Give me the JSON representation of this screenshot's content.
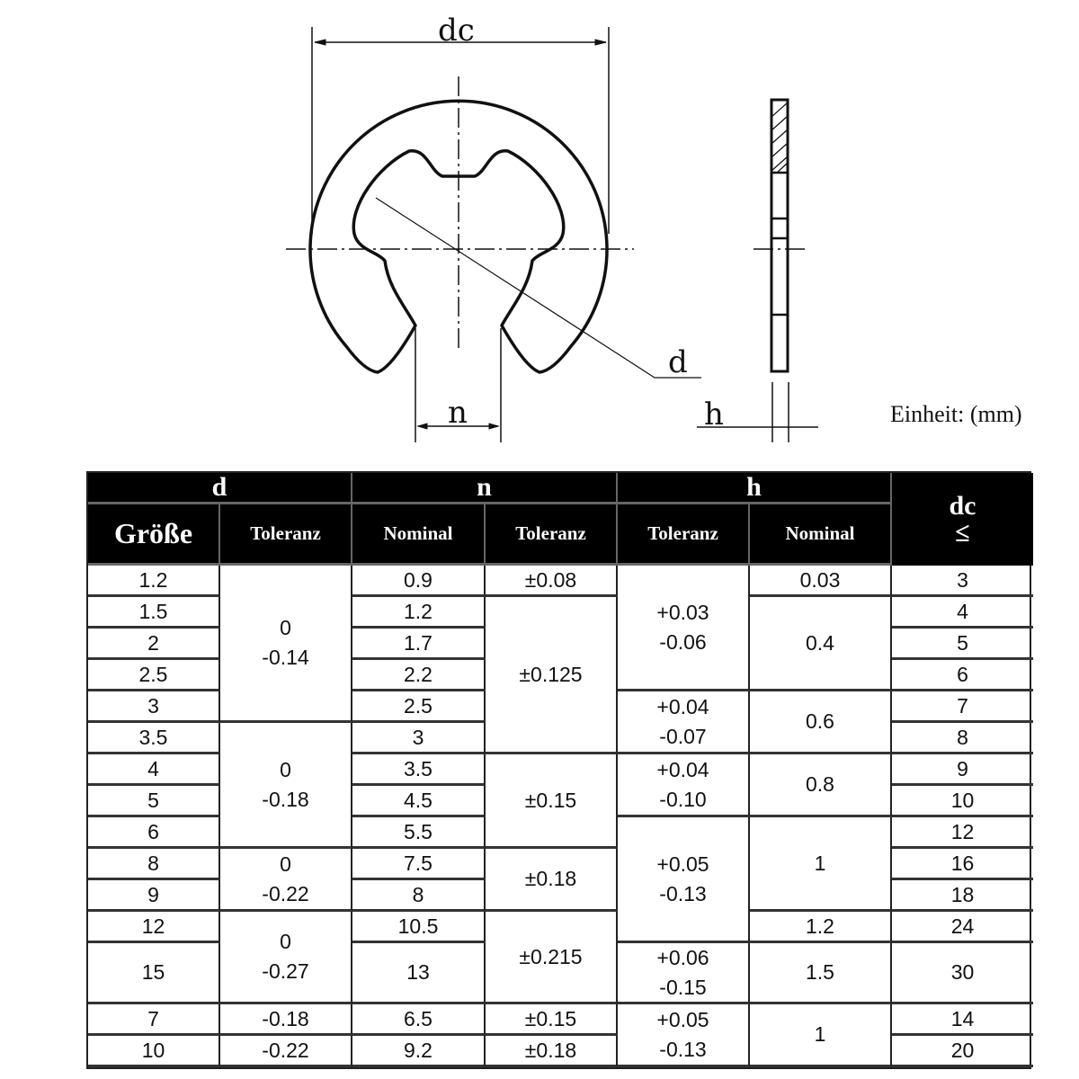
{
  "drawing": {
    "labels": {
      "dc": "dc",
      "d": "d",
      "n": "n",
      "h": "h"
    },
    "unit_label": "Einheit: (mm)"
  },
  "table": {
    "group_headers": {
      "d": "d",
      "n": "n",
      "h": "h",
      "dc": "dc",
      "dc_symbol": "≤"
    },
    "sub_headers": [
      "Größe",
      "Toleranz",
      "Nominal",
      "Toleranz",
      "Toleranz",
      "Nominal"
    ],
    "columns": [
      {
        "key": "size",
        "entries": [
          {
            "v": [
              "1.2"
            ],
            "rows": 1
          },
          {
            "v": [
              "1.5"
            ],
            "rows": 1
          },
          {
            "v": [
              "2"
            ],
            "rows": 1
          },
          {
            "v": [
              "2.5"
            ],
            "rows": 1
          },
          {
            "v": [
              "3"
            ],
            "rows": 1
          },
          {
            "v": [
              "3.5"
            ],
            "rows": 1
          },
          {
            "v": [
              "4"
            ],
            "rows": 1
          },
          {
            "v": [
              "5"
            ],
            "rows": 1
          },
          {
            "v": [
              "6"
            ],
            "rows": 1
          },
          {
            "v": [
              "8"
            ],
            "rows": 1
          },
          {
            "v": [
              "9"
            ],
            "rows": 1
          },
          {
            "v": [
              "12"
            ],
            "rows": 1
          },
          {
            "v": [
              "15"
            ],
            "rows": 1
          },
          {
            "v": [
              "7"
            ],
            "rows": 1
          },
          {
            "v": [
              "10"
            ],
            "rows": 1
          }
        ]
      },
      {
        "key": "d_tolerance",
        "entries": [
          {
            "v": [
              "0",
              "-0.14"
            ],
            "rows": 5
          },
          {
            "v": [
              "0",
              "-0.18"
            ],
            "rows": 4
          },
          {
            "v": [
              "0",
              "-0.22"
            ],
            "rows": 2
          },
          {
            "v": [
              "0",
              "-0.27"
            ],
            "rows": 2
          },
          {
            "v": [
              "-0.18"
            ],
            "rows": 1
          },
          {
            "v": [
              "-0.22"
            ],
            "rows": 1
          }
        ]
      },
      {
        "key": "n_nominal",
        "entries": [
          {
            "v": [
              "0.9"
            ],
            "rows": 1
          },
          {
            "v": [
              "1.2"
            ],
            "rows": 1
          },
          {
            "v": [
              "1.7"
            ],
            "rows": 1
          },
          {
            "v": [
              "2.2"
            ],
            "rows": 1
          },
          {
            "v": [
              "2.5"
            ],
            "rows": 1
          },
          {
            "v": [
              "3"
            ],
            "rows": 1
          },
          {
            "v": [
              "3.5"
            ],
            "rows": 1
          },
          {
            "v": [
              "4.5"
            ],
            "rows": 1
          },
          {
            "v": [
              "5.5"
            ],
            "rows": 1
          },
          {
            "v": [
              "7.5"
            ],
            "rows": 1
          },
          {
            "v": [
              "8"
            ],
            "rows": 1
          },
          {
            "v": [
              "10.5"
            ],
            "rows": 1
          },
          {
            "v": [
              "13"
            ],
            "rows": 1
          },
          {
            "v": [
              "6.5"
            ],
            "rows": 1
          },
          {
            "v": [
              "9.2"
            ],
            "rows": 1
          }
        ]
      },
      {
        "key": "n_tolerance",
        "entries": [
          {
            "v": [
              "±0.08"
            ],
            "rows": 1
          },
          {
            "v": [
              "±0.125"
            ],
            "rows": 5
          },
          {
            "v": [
              "±0.15"
            ],
            "rows": 3
          },
          {
            "v": [
              "±0.18"
            ],
            "rows": 2
          },
          {
            "v": [
              "±0.215"
            ],
            "rows": 2
          },
          {
            "v": [
              "±0.15"
            ],
            "rows": 1
          },
          {
            "v": [
              "±0.18"
            ],
            "rows": 1
          }
        ]
      },
      {
        "key": "h_tolerance",
        "entries": [
          {
            "v": [
              "+0.03",
              "-0.06"
            ],
            "rows": 4
          },
          {
            "v": [
              "+0.04",
              "-0.07"
            ],
            "rows": 2
          },
          {
            "v": [
              "+0.04",
              "-0.10"
            ],
            "rows": 2
          },
          {
            "v": [
              "+0.05",
              "-0.13"
            ],
            "rows": 4
          },
          {
            "v": [
              "+0.06",
              "-0.15"
            ],
            "rows": 1
          },
          {
            "v": [
              "+0.05",
              "-0.13"
            ],
            "rows": 2
          }
        ]
      },
      {
        "key": "h_nominal",
        "entries": [
          {
            "v": [
              "0.03"
            ],
            "rows": 1
          },
          {
            "v": [
              "0.4"
            ],
            "rows": 3
          },
          {
            "v": [
              "0.6"
            ],
            "rows": 2
          },
          {
            "v": [
              "0.8"
            ],
            "rows": 2
          },
          {
            "v": [
              "1"
            ],
            "rows": 3
          },
          {
            "v": [
              "1.2"
            ],
            "rows": 1
          },
          {
            "v": [
              "1.5"
            ],
            "rows": 1
          },
          {
            "v": [
              "1"
            ],
            "rows": 2
          }
        ]
      },
      {
        "key": "dc",
        "entries": [
          {
            "v": [
              "3"
            ],
            "rows": 1
          },
          {
            "v": [
              "4"
            ],
            "rows": 1
          },
          {
            "v": [
              "5"
            ],
            "rows": 1
          },
          {
            "v": [
              "6"
            ],
            "rows": 1
          },
          {
            "v": [
              "7"
            ],
            "rows": 1
          },
          {
            "v": [
              "8"
            ],
            "rows": 1
          },
          {
            "v": [
              "9"
            ],
            "rows": 1
          },
          {
            "v": [
              "10"
            ],
            "rows": 1
          },
          {
            "v": [
              "12"
            ],
            "rows": 1
          },
          {
            "v": [
              "16"
            ],
            "rows": 1
          },
          {
            "v": [
              "18"
            ],
            "rows": 1
          },
          {
            "v": [
              "24"
            ],
            "rows": 1
          },
          {
            "v": [
              "30"
            ],
            "rows": 1
          },
          {
            "v": [
              "14"
            ],
            "rows": 1
          },
          {
            "v": [
              "20"
            ],
            "rows": 1
          }
        ]
      }
    ]
  }
}
